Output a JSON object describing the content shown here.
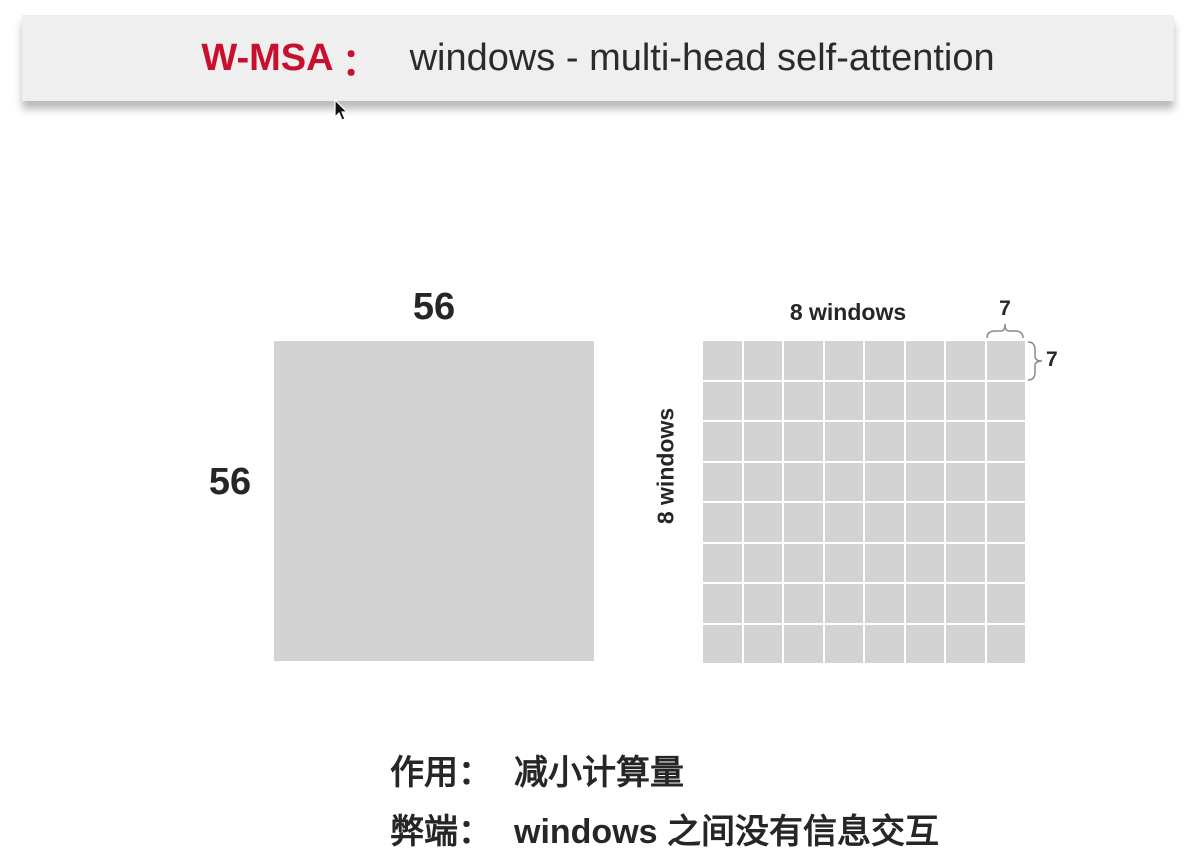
{
  "header": {
    "term": "W-MSA",
    "colon": "：",
    "description": "windows - multi-head self-attention",
    "accent_color": "#c8102e"
  },
  "feature_map": {
    "width_label": "56",
    "height_label": "56",
    "fill_color": "#d3d3d3"
  },
  "window_grid": {
    "cols_label": "8 windows",
    "rows_label": "8 windows",
    "window_width_label": "7",
    "window_height_label": "7",
    "cols": 8,
    "rows": 8
  },
  "notes": {
    "effect_label": "作用：",
    "effect_value": "减小计算量",
    "drawback_label": "弊端：",
    "drawback_value": "windows 之间没有信息交互"
  }
}
